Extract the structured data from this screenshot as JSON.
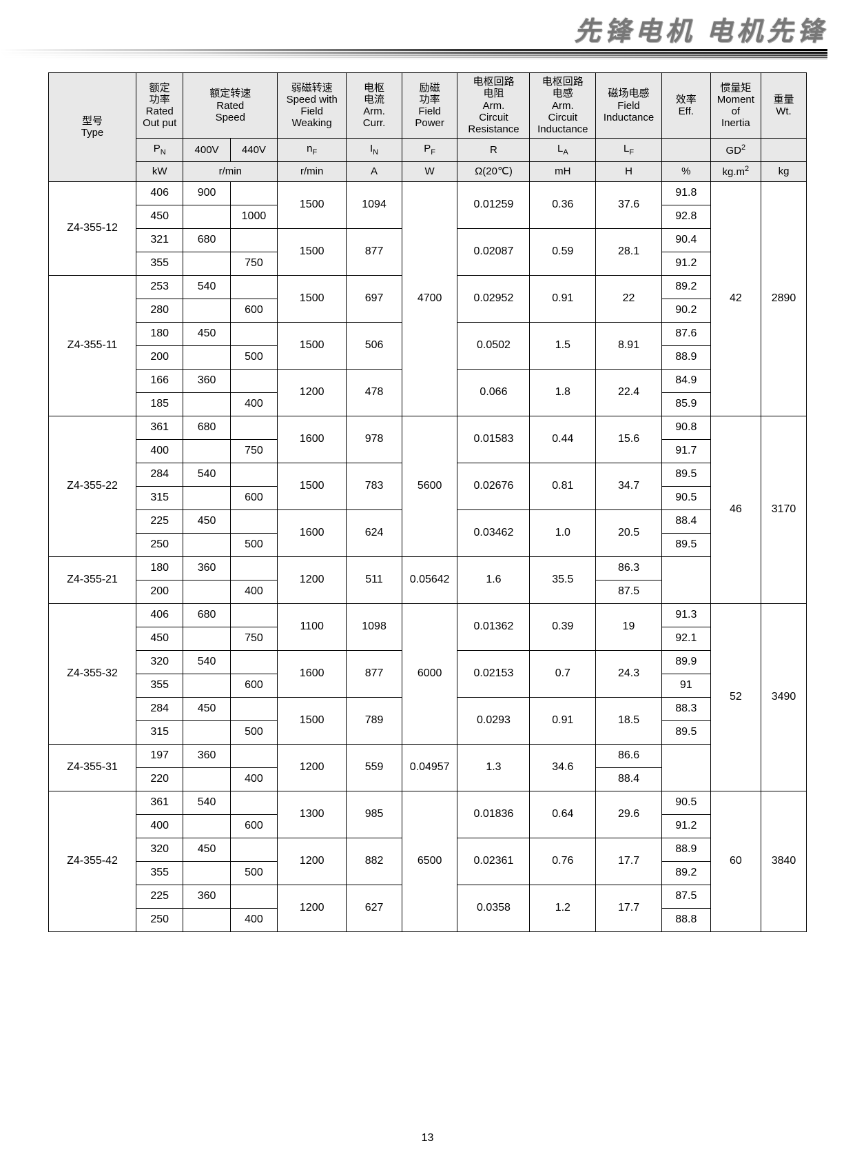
{
  "page_number": "13",
  "header_text": "先锋电机  电机先锋",
  "table_meta": {
    "header_bg": "#e8e8e8",
    "border_color": "#000000",
    "font_size_pt": 12
  },
  "headers": {
    "type": {
      "zh": "型号",
      "en": "Type"
    },
    "pn": {
      "zh": "额定\n功率",
      "en": "Rated\nOut put",
      "sym": "P",
      "sub": "N",
      "unit": "kW"
    },
    "speed": {
      "zh": "额定转速",
      "en": "Rated\nSpeed",
      "v400": "400V",
      "v440": "440V",
      "unit": "r/min"
    },
    "nf": {
      "zh": "弱磁转速",
      "en": "Speed with\nField\nWeaking",
      "sym": "n",
      "sub": "F",
      "unit": "r/min"
    },
    "in": {
      "zh": "电枢\n电流",
      "en": "Arm.\nCurr.",
      "sym": "I",
      "sub": "N",
      "unit": "A"
    },
    "pf": {
      "zh": "励磁\n功率",
      "en": "Field\nPower",
      "sym": "P",
      "sub": "F",
      "unit": "W"
    },
    "r": {
      "zh": "电枢回路\n电阻",
      "en": "Arm.\nCircuit\nResistance",
      "sym": "R",
      "unit": "Ω(20℃)"
    },
    "la": {
      "zh": "电枢回路\n电感",
      "en": "Arm.\nCircuit\nInductance",
      "sym": "L",
      "sub": "A",
      "unit": "mH"
    },
    "lf": {
      "zh": "磁场电感",
      "en": "Field\nInductance",
      "sym": "L",
      "sub": "F",
      "unit": "H"
    },
    "eff": {
      "zh": "效率",
      "en": "Eff.",
      "unit": "%"
    },
    "gd": {
      "zh": "惯量矩",
      "en": "Moment\nof\nInertia",
      "sym": "GD",
      "sup": "2",
      "unit": "kg.m",
      "unit_sup": "2"
    },
    "wt": {
      "zh": "重量",
      "en": "Wt.",
      "unit": "kg"
    }
  },
  "groups": [
    {
      "pf": "4700",
      "gd": "42",
      "wt": "2890",
      "blocks": [
        {
          "type": "Z4-355-12",
          "pairs": [
            {
              "nf": "1500",
              "in": "1094",
              "r": "0.01259",
              "la": "0.36",
              "lf": "37.6",
              "a": {
                "pn": "406",
                "v400": "900",
                "v440": "",
                "eff": "91.8"
              },
              "b": {
                "pn": "450",
                "v400": "",
                "v440": "1000",
                "eff": "92.8"
              }
            },
            {
              "nf": "1500",
              "in": "877",
              "r": "0.02087",
              "la": "0.59",
              "lf": "28.1",
              "a": {
                "pn": "321",
                "v400": "680",
                "v440": "",
                "eff": "90.4"
              },
              "b": {
                "pn": "355",
                "v400": "",
                "v440": "750",
                "eff": "91.2"
              }
            }
          ]
        },
        {
          "type": "Z4-355-11",
          "pairs": [
            {
              "nf": "1500",
              "in": "697",
              "r": "0.02952",
              "la": "0.91",
              "lf": "22",
              "a": {
                "pn": "253",
                "v400": "540",
                "v440": "",
                "eff": "89.2"
              },
              "b": {
                "pn": "280",
                "v400": "",
                "v440": "600",
                "eff": "90.2"
              }
            },
            {
              "nf": "1500",
              "in": "506",
              "r": "0.0502",
              "la": "1.5",
              "lf": "8.91",
              "a": {
                "pn": "180",
                "v400": "450",
                "v440": "",
                "eff": "87.6"
              },
              "b": {
                "pn": "200",
                "v400": "",
                "v440": "500",
                "eff": "88.9"
              }
            },
            {
              "nf": "1200",
              "in": "478",
              "r": "0.066",
              "la": "1.8",
              "lf": "22.4",
              "a": {
                "pn": "166",
                "v400": "360",
                "v440": "",
                "eff": "84.9"
              },
              "b": {
                "pn": "185",
                "v400": "",
                "v440": "400",
                "eff": "85.9"
              }
            }
          ]
        }
      ]
    },
    {
      "pf": "5600",
      "gd": "46",
      "wt": "3170",
      "pf_rows": 6,
      "gdwt_rows": 8,
      "blocks": [
        {
          "type": "Z4-355-22",
          "pairs": [
            {
              "nf": "1600",
              "in": "978",
              "r": "0.01583",
              "la": "0.44",
              "lf": "15.6",
              "a": {
                "pn": "361",
                "v400": "680",
                "v440": "",
                "eff": "90.8"
              },
              "b": {
                "pn": "400",
                "v400": "",
                "v440": "750",
                "eff": "91.7"
              }
            },
            {
              "nf": "1500",
              "in": "783",
              "r": "0.02676",
              "la": "0.81",
              "lf": "34.7",
              "a": {
                "pn": "284",
                "v400": "540",
                "v440": "",
                "eff": "89.5"
              },
              "b": {
                "pn": "315",
                "v400": "",
                "v440": "600",
                "eff": "90.5"
              }
            },
            {
              "nf": "1600",
              "in": "624",
              "r": "0.03462",
              "la": "1.0",
              "lf": "20.5",
              "a": {
                "pn": "225",
                "v400": "450",
                "v440": "",
                "eff": "88.4"
              },
              "b": {
                "pn": "250",
                "v400": "",
                "v440": "500",
                "eff": "89.5"
              }
            }
          ]
        },
        {
          "type": "Z4-355-21",
          "no_gdwt": true,
          "pairs": [
            {
              "nf": "1200",
              "in": "511",
              "r": "0.05642",
              "la": "1.6",
              "lf": "35.5",
              "a": {
                "pn": "180",
                "v400": "360",
                "v440": "",
                "eff": "86.3"
              },
              "b": {
                "pn": "200",
                "v400": "",
                "v440": "400",
                "eff": "87.5"
              }
            }
          ]
        }
      ]
    },
    {
      "pf": "6000",
      "gd": "52",
      "wt": "3490",
      "pf_rows": 6,
      "gdwt_rows": 8,
      "blocks": [
        {
          "type": "Z4-355-32",
          "pairs": [
            {
              "nf": "1100",
              "in": "1098",
              "r": "0.01362",
              "la": "0.39",
              "lf": "19",
              "a": {
                "pn": "406",
                "v400": "680",
                "v440": "",
                "eff": "91.3"
              },
              "b": {
                "pn": "450",
                "v400": "",
                "v440": "750",
                "eff": "92.1"
              }
            },
            {
              "nf": "1600",
              "in": "877",
              "r": "0.02153",
              "la": "0.7",
              "lf": "24.3",
              "a": {
                "pn": "320",
                "v400": "540",
                "v440": "",
                "eff": "89.9"
              },
              "b": {
                "pn": "355",
                "v400": "",
                "v440": "600",
                "eff": "91"
              }
            },
            {
              "nf": "1500",
              "in": "789",
              "r": "0.0293",
              "la": "0.91",
              "lf": "18.5",
              "a": {
                "pn": "284",
                "v400": "450",
                "v440": "",
                "eff": "88.3"
              },
              "b": {
                "pn": "315",
                "v400": "",
                "v440": "500",
                "eff": "89.5"
              }
            }
          ]
        },
        {
          "type": "Z4-355-31",
          "no_gdwt": true,
          "pairs": [
            {
              "nf": "1200",
              "in": "559",
              "r": "0.04957",
              "la": "1.3",
              "lf": "34.6",
              "a": {
                "pn": "197",
                "v400": "360",
                "v440": "",
                "eff": "86.6"
              },
              "b": {
                "pn": "220",
                "v400": "",
                "v440": "400",
                "eff": "88.4"
              }
            }
          ]
        }
      ]
    },
    {
      "pf": "6500",
      "gd": "60",
      "wt": "3840",
      "blocks": [
        {
          "type": "Z4-355-42",
          "pairs": [
            {
              "nf": "1300",
              "in": "985",
              "r": "0.01836",
              "la": "0.64",
              "lf": "29.6",
              "a": {
                "pn": "361",
                "v400": "540",
                "v440": "",
                "eff": "90.5"
              },
              "b": {
                "pn": "400",
                "v400": "",
                "v440": "600",
                "eff": "91.2"
              }
            },
            {
              "nf": "1200",
              "in": "882",
              "r": "0.02361",
              "la": "0.76",
              "lf": "17.7",
              "a": {
                "pn": "320",
                "v400": "450",
                "v440": "",
                "eff": "88.9"
              },
              "b": {
                "pn": "355",
                "v400": "",
                "v440": "500",
                "eff": "89.2"
              }
            },
            {
              "nf": "1200",
              "in": "627",
              "r": "0.0358",
              "la": "1.2",
              "lf": "17.7",
              "a": {
                "pn": "225",
                "v400": "360",
                "v440": "",
                "eff": "87.5"
              },
              "b": {
                "pn": "250",
                "v400": "",
                "v440": "400",
                "eff": "88.8"
              }
            }
          ]
        }
      ]
    }
  ]
}
